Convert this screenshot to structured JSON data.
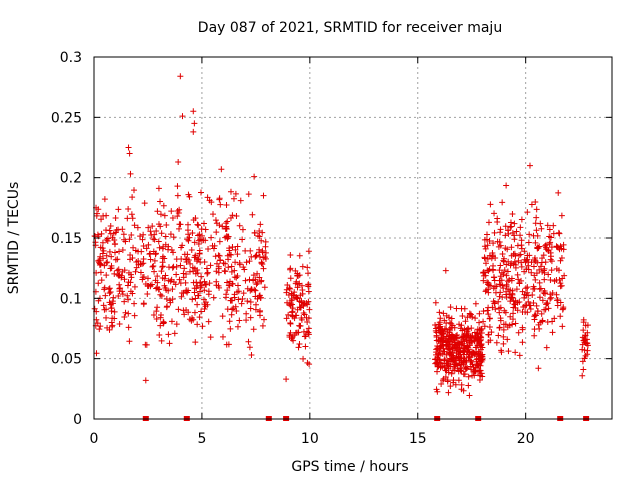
{
  "chart_data": {
    "type": "scatter",
    "title": "Day 087 of 2021, SRMTID for receiver maju",
    "xlabel": "GPS time / hours",
    "ylabel": "SRMTID / TECUs",
    "xlim": [
      0,
      24
    ],
    "ylim": [
      0,
      0.3
    ],
    "xticks": [
      0,
      5,
      10,
      15,
      20
    ],
    "xtick_labels": [
      "0",
      "5",
      "10",
      "15",
      "20"
    ],
    "yticks": [
      0,
      0.05,
      0.1,
      0.15,
      0.2,
      0.25,
      0.3
    ],
    "ytick_labels": [
      "0",
      "0.05",
      "0.1",
      "0.15",
      "0.2",
      "0.25",
      "0.3"
    ],
    "grid": true,
    "color": "#e00000",
    "marker": "plus",
    "series": [
      {
        "name": "SRMTID",
        "clusters": [
          {
            "x": [
              0.0,
              8.0
            ],
            "y": [
              0.04,
              0.21
            ],
            "n": 620
          },
          {
            "x": [
              8.9,
              10.0
            ],
            "y": [
              0.03,
              0.16
            ],
            "n": 110
          },
          {
            "x": [
              15.8,
              18.0
            ],
            "y": [
              0.015,
              0.1
            ],
            "n": 420
          },
          {
            "x": [
              18.0,
              21.8
            ],
            "y": [
              0.035,
              0.2
            ],
            "n": 380
          },
          {
            "x": [
              22.6,
              22.9
            ],
            "y": [
              0.03,
              0.095
            ],
            "n": 30
          }
        ],
        "outliers": [
          {
            "x": 4.0,
            "y": 0.284
          },
          {
            "x": 4.1,
            "y": 0.251
          },
          {
            "x": 4.6,
            "y": 0.255
          },
          {
            "x": 4.65,
            "y": 0.245
          },
          {
            "x": 4.6,
            "y": 0.238
          },
          {
            "x": 1.6,
            "y": 0.225
          },
          {
            "x": 1.65,
            "y": 0.22
          },
          {
            "x": 3.9,
            "y": 0.213
          },
          {
            "x": 5.9,
            "y": 0.207
          },
          {
            "x": 20.2,
            "y": 0.21
          },
          {
            "x": 2.4,
            "y": 0.032
          },
          {
            "x": 8.9,
            "y": 0.033
          },
          {
            "x": 16.3,
            "y": 0.123
          },
          {
            "x": 18.3,
            "y": 0.163
          }
        ]
      }
    ],
    "baseline_markers_x": [
      2.4,
      4.3,
      8.1,
      8.9,
      15.9,
      17.8,
      21.6,
      22.8
    ]
  }
}
